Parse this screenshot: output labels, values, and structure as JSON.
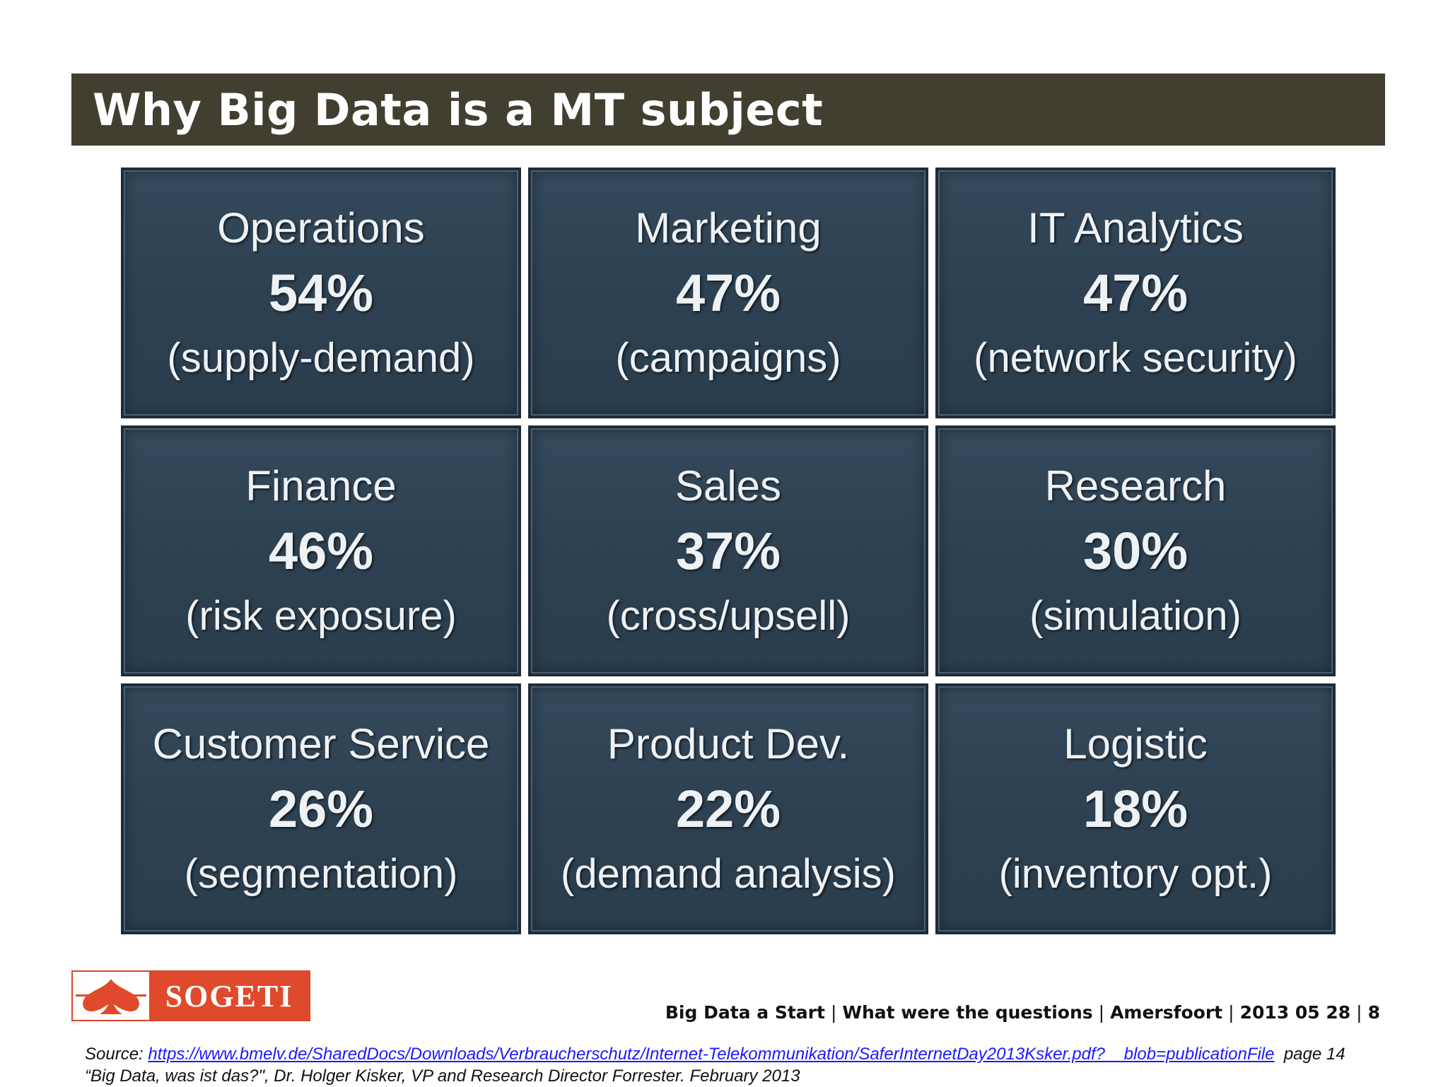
{
  "title": "Why Big Data is a MT subject",
  "tiles": [
    {
      "label": "Operations",
      "pct": "54%",
      "desc": "(supply-demand)"
    },
    {
      "label": "Marketing",
      "pct": "47%",
      "desc": "(campaigns)"
    },
    {
      "label": "IT Analytics",
      "pct": "47%",
      "desc": "(network security)"
    },
    {
      "label": "Finance",
      "pct": "46%",
      "desc": "(risk exposure)"
    },
    {
      "label": "Sales",
      "pct": "37%",
      "desc": "(cross/upsell)"
    },
    {
      "label": "Research",
      "pct": "30%",
      "desc": "(simulation)"
    },
    {
      "label": "Customer Service",
      "pct": "26%",
      "desc": "(segmentation)"
    },
    {
      "label": "Product Dev.",
      "pct": "22%",
      "desc": "(demand analysis)"
    },
    {
      "label": "Logistic",
      "pct": "18%",
      "desc": "(inventory opt.)"
    }
  ],
  "logo": {
    "name": "SOGETI",
    "icon": "spade-icon",
    "color": "#e04a2c"
  },
  "footer": {
    "presentation": "Big Data a Start",
    "section": "What were the questions",
    "location": "Amersfoort",
    "date": "2013 05 28",
    "page": "8"
  },
  "source": {
    "prefix": "Source: ",
    "url": "https://www.bmelv.de/SharedDocs/Downloads/Verbraucherschutz/Internet-Telekommunikation/SaferInternetDay2013Ksker.pdf?__blob=publicationFile",
    "page_ref": "page 14",
    "citation": "“Big Data, was ist das?\", Dr. Holger Kisker, VP and Research Director Forrester. February 2013"
  },
  "colors": {
    "title_bar": "#433f30",
    "tile": "#2d4152",
    "accent": "#e04a2c",
    "link": "#1a1aff"
  }
}
